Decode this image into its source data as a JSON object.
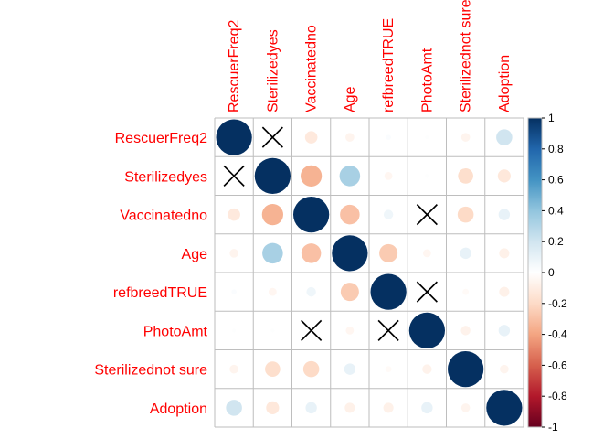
{
  "chart_data": {
    "type": "heatmap",
    "subtype": "correlation-circle-matrix",
    "variables": [
      "RescuerFreq2",
      "Sterilizedyes",
      "Vaccinatedno",
      "Age",
      "refbreedTRUE",
      "PhotoAmt",
      "Sterilizednot sure",
      "Adoption"
    ],
    "matrix": [
      [
        1.0,
        null,
        -0.12,
        -0.06,
        0.02,
        0.01,
        -0.06,
        0.2
      ],
      [
        null,
        1.0,
        -0.35,
        0.33,
        -0.05,
        0.01,
        -0.18,
        -0.13
      ],
      [
        -0.12,
        -0.35,
        1.0,
        -0.3,
        0.07,
        null,
        -0.2,
        0.1
      ],
      [
        -0.06,
        0.33,
        -0.3,
        1.0,
        -0.26,
        -0.05,
        0.1,
        -0.08
      ],
      [
        0.02,
        -0.05,
        0.07,
        -0.26,
        1.0,
        null,
        -0.03,
        -0.08
      ],
      [
        0.01,
        0.01,
        null,
        -0.05,
        null,
        1.0,
        -0.07,
        0.1
      ],
      [
        -0.06,
        -0.18,
        -0.2,
        0.1,
        -0.03,
        -0.07,
        1.0,
        -0.06
      ],
      [
        0.2,
        -0.13,
        0.1,
        -0.08,
        -0.08,
        0.1,
        -0.06,
        1.0
      ]
    ],
    "insignificant_marker": "X",
    "colorbar": {
      "range": [
        -1,
        1
      ],
      "ticks": [
        "1",
        "0.8",
        "0.6",
        "0.4",
        "0.2",
        "0",
        "-0.2",
        "-0.4",
        "-0.6",
        "-0.8",
        "-1"
      ]
    },
    "label_color": "#ff0000",
    "colors": {
      "palette": [
        "#67001f",
        "#b2182b",
        "#d6604d",
        "#f4a582",
        "#fddbc7",
        "#ffffff",
        "#d1e5f0",
        "#92c5de",
        "#4393c3",
        "#2166ac",
        "#053061"
      ],
      "grid": "#bebebe",
      "border": "#bebebe",
      "marker": "#000000"
    }
  }
}
